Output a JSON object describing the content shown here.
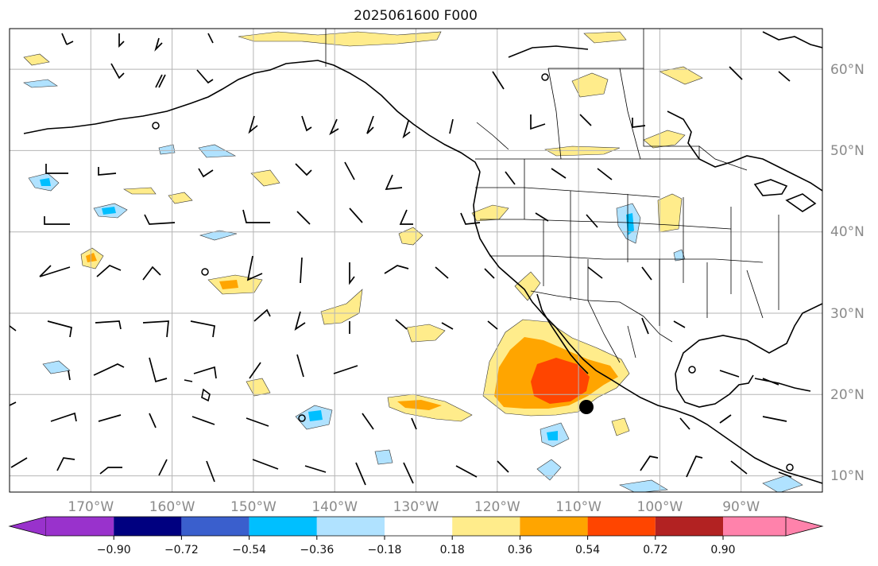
{
  "title": "2025061600 F000",
  "map": {
    "projection": "plate-carree",
    "lon_range": [
      -180,
      -80
    ],
    "lat_range": [
      8,
      65
    ],
    "lon_labels": [
      "170°W",
      "160°W",
      "150°W",
      "140°W",
      "130°W",
      "120°W",
      "110°W",
      "100°W",
      "90°W"
    ],
    "lat_labels": [
      "60°N",
      "50°N",
      "40°N",
      "30°N",
      "20°N",
      "10°N"
    ],
    "gridlines": true,
    "features": [
      "coastlines",
      "country-borders",
      "state-borders",
      "wind-barbs",
      "filled-contours"
    ]
  },
  "colorbar": {
    "orientation": "horizontal",
    "extend": "both",
    "tick_labels": [
      "−0.90",
      "−0.72",
      "−0.54",
      "−0.36",
      "−0.18",
      "0.18",
      "0.36",
      "0.54",
      "0.72",
      "0.90"
    ],
    "levels": [
      -0.9,
      -0.72,
      -0.54,
      -0.36,
      -0.18,
      0.18,
      0.36,
      0.54,
      0.72,
      0.9
    ],
    "colors": [
      "#9932cc",
      "#000080",
      "#3a5fcd",
      "#00bfff",
      "#b0e2ff",
      "#ffffff",
      "#ffec8b",
      "#ffa500",
      "#ff4500",
      "#b22222",
      "#ff82ab"
    ]
  },
  "marker": {
    "label": "black-dot",
    "lon": -109,
    "lat": 18.5
  }
}
